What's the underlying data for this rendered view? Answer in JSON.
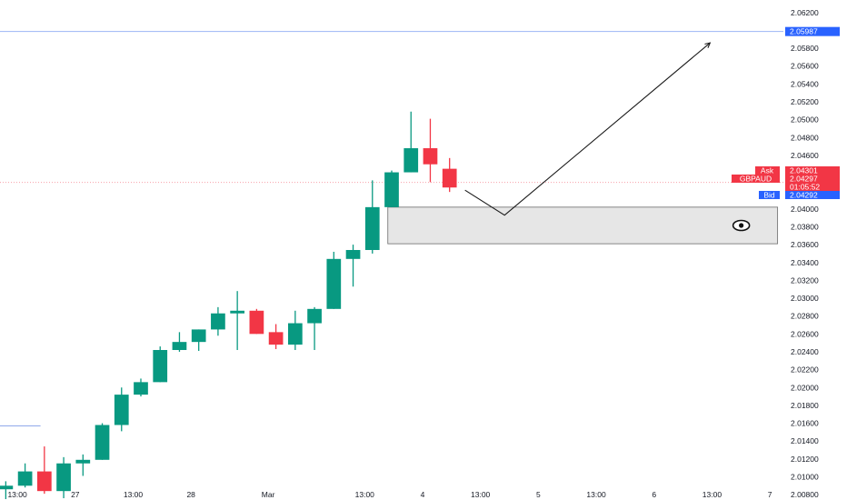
{
  "chart_data": {
    "type": "candlestick",
    "symbol": "GBPAUD",
    "price_axis": {
      "ticks": [
        2.062,
        2.06,
        2.058,
        2.056,
        2.054,
        2.052,
        2.05,
        2.048,
        2.046,
        2.044,
        2.042,
        2.04,
        2.038,
        2.036,
        2.034,
        2.032,
        2.03,
        2.028,
        2.026,
        2.024,
        2.022,
        2.02,
        2.018,
        2.016,
        2.014,
        2.012,
        2.01,
        2.008
      ],
      "decimals": 5,
      "ylim": [
        2.0074,
        2.0634
      ]
    },
    "time_axis": {
      "labels": [
        {
          "text": "13:00",
          "bar": 0.6
        },
        {
          "text": "27",
          "bar": 3.6
        },
        {
          "text": "13:00",
          "bar": 6.6
        },
        {
          "text": "28",
          "bar": 9.6
        },
        {
          "text": "Mar",
          "bar": 13.6
        },
        {
          "text": "13:00",
          "bar": 18.6
        },
        {
          "text": "4",
          "bar": 21.6
        },
        {
          "text": "13:00",
          "bar": 24.6
        },
        {
          "text": "5",
          "bar": 27.6
        },
        {
          "text": "13:00",
          "bar": 30.6
        },
        {
          "text": "6",
          "bar": 33.6
        },
        {
          "text": "13:00",
          "bar": 36.6
        },
        {
          "text": "7",
          "bar": 39.6
        }
      ],
      "bar_range": [
        -0.3,
        40.3
      ]
    },
    "candles": [
      {
        "o": 2.0086,
        "h": 2.0095,
        "l": 2.0075,
        "c": 2.009
      },
      {
        "o": 2.009,
        "h": 2.0115,
        "l": 2.0088,
        "c": 2.0106
      },
      {
        "o": 2.0106,
        "h": 2.0134,
        "l": 2.0081,
        "c": 2.0084
      },
      {
        "o": 2.0084,
        "h": 2.0122,
        "l": 2.0076,
        "c": 2.0115
      },
      {
        "o": 2.0115,
        "h": 2.0125,
        "l": 2.0101,
        "c": 2.0119
      },
      {
        "o": 2.0119,
        "h": 2.016,
        "l": 2.0119,
        "c": 2.0158
      },
      {
        "o": 2.0158,
        "h": 2.02,
        "l": 2.0151,
        "c": 2.0192
      },
      {
        "o": 2.0192,
        "h": 2.021,
        "l": 2.019,
        "c": 2.0206
      },
      {
        "o": 2.0206,
        "h": 2.0246,
        "l": 2.0206,
        "c": 2.0242
      },
      {
        "o": 2.0242,
        "h": 2.0262,
        "l": 2.024,
        "c": 2.0251
      },
      {
        "o": 2.0251,
        "h": 2.0265,
        "l": 2.0241,
        "c": 2.0265
      },
      {
        "o": 2.0265,
        "h": 2.029,
        "l": 2.0258,
        "c": 2.0283
      },
      {
        "o": 2.0283,
        "h": 2.0308,
        "l": 2.0242,
        "c": 2.0286
      },
      {
        "o": 2.0286,
        "h": 2.0288,
        "l": 2.026,
        "c": 2.026
      },
      {
        "o": 2.0262,
        "h": 2.0271,
        "l": 2.0243,
        "c": 2.0248
      },
      {
        "o": 2.0248,
        "h": 2.0286,
        "l": 2.0242,
        "c": 2.0272
      },
      {
        "o": 2.0272,
        "h": 2.029,
        "l": 2.0242,
        "c": 2.0288
      },
      {
        "o": 2.0288,
        "h": 2.0352,
        "l": 2.0288,
        "c": 2.0344
      },
      {
        "o": 2.0344,
        "h": 2.036,
        "l": 2.0313,
        "c": 2.0354
      },
      {
        "o": 2.0354,
        "h": 2.0432,
        "l": 2.035,
        "c": 2.0402
      },
      {
        "o": 2.0402,
        "h": 2.0443,
        "l": 2.0402,
        "c": 2.0441
      },
      {
        "o": 2.0441,
        "h": 2.0509,
        "l": 2.0441,
        "c": 2.0468
      },
      {
        "o": 2.0468,
        "h": 2.0501,
        "l": 2.043,
        "c": 2.045
      },
      {
        "o": 2.0445,
        "h": 2.0457,
        "l": 2.0419,
        "c": 2.0424
      }
    ],
    "drawings": {
      "zone": {
        "x0": 19.8,
        "x1": 40.0,
        "top": 2.0402,
        "bottom": 2.0361
      },
      "path": [
        {
          "x": 23.8,
          "y": 2.0421
        },
        {
          "x": 25.85,
          "y": 2.0393
        },
        {
          "x": 36.5,
          "y": 2.0586
        }
      ],
      "target_line": 2.05987,
      "current_price_line": 2.04297,
      "left_stub": {
        "x0": -0.3,
        "x1": 1.8,
        "y": 2.0157
      }
    },
    "price_tags": {
      "target": "2.05987",
      "ask_label": "Ask",
      "ask": "2.04301",
      "symbol_label": "GBPAUD",
      "last": "2.04297",
      "countdown": "01:05:52",
      "bid_label": "Bid",
      "bid": "2.04292"
    },
    "colors": {
      "up": "#089981",
      "down": "#f23645",
      "tag_blue": "#2962ff",
      "target_line": "#9bb4f5",
      "price_line": "#f7a1aa",
      "zone_fill": "#e6e6e6",
      "zone_border": "#6b6b6b",
      "path": "#1a1a1a",
      "stub": "#90a8ea"
    },
    "icons": {
      "zone_icon": "eye-icon"
    }
  }
}
